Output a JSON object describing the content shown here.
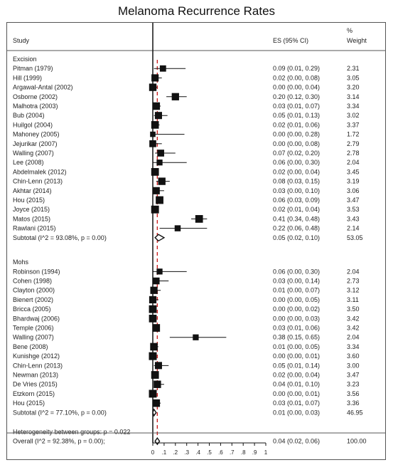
{
  "chart_data": {
    "type": "forest",
    "title": "Melanoma Recurrence Rates",
    "headers": {
      "study": "Study",
      "es": "ES (95% CI)",
      "weight_top": "%",
      "weight": "Weight"
    },
    "xlim": [
      0,
      1
    ],
    "xticks": [
      "0",
      ".1",
      ".2",
      ".3",
      ".4",
      ".5",
      ".6",
      ".7",
      ".8",
      ".9",
      "1"
    ],
    "reference_line": 0.04,
    "groups": [
      {
        "name": "Excision",
        "studies": [
          {
            "label": "Pitman (1979)",
            "es": 0.09,
            "lo": 0.01,
            "hi": 0.29,
            "ci": "0.09 (0.01, 0.29)",
            "weight": "2.31"
          },
          {
            "label": "Hill (1999)",
            "es": 0.02,
            "lo": 0.0,
            "hi": 0.08,
            "ci": "0.02 (0.00, 0.08)",
            "weight": "3.05"
          },
          {
            "label": "Argawal-Antal (2002)",
            "es": 0.0,
            "lo": 0.0,
            "hi": 0.04,
            "ci": "0.00 (0.00, 0.04)",
            "weight": "3.20"
          },
          {
            "label": "Osborne (2002)",
            "es": 0.2,
            "lo": 0.12,
            "hi": 0.3,
            "ci": "0.20 (0.12, 0.30)",
            "weight": "3.14"
          },
          {
            "label": "Malhotra (2003)",
            "es": 0.03,
            "lo": 0.01,
            "hi": 0.07,
            "ci": "0.03 (0.01, 0.07)",
            "weight": "3.34"
          },
          {
            "label": "Bub (2004)",
            "es": 0.05,
            "lo": 0.01,
            "hi": 0.13,
            "ci": "0.05 (0.01, 0.13)",
            "weight": "3.02"
          },
          {
            "label": "Huilgol (2004)",
            "es": 0.02,
            "lo": 0.01,
            "hi": 0.06,
            "ci": "0.02 (0.01, 0.06)",
            "weight": "3.37"
          },
          {
            "label": "Mahoney (2005)",
            "es": 0.0,
            "lo": 0.0,
            "hi": 0.28,
            "ci": "0.00 (0.00, 0.28)",
            "weight": "1.72"
          },
          {
            "label": "Jejurikar (2007)",
            "es": 0.0,
            "lo": 0.0,
            "hi": 0.08,
            "ci": "0.00 (0.00, 0.08)",
            "weight": "2.79"
          },
          {
            "label": "Walling (2007)",
            "es": 0.07,
            "lo": 0.02,
            "hi": 0.2,
            "ci": "0.07 (0.02, 0.20)",
            "weight": "2.78"
          },
          {
            "label": "Lee (2008)",
            "es": 0.06,
            "lo": 0.0,
            "hi": 0.3,
            "ci": "0.06 (0.00, 0.30)",
            "weight": "2.04"
          },
          {
            "label": "Abdelmalek (2012)",
            "es": 0.02,
            "lo": 0.0,
            "hi": 0.04,
            "ci": "0.02 (0.00, 0.04)",
            "weight": "3.45"
          },
          {
            "label": "Chin-Lenn (2013)",
            "es": 0.08,
            "lo": 0.03,
            "hi": 0.15,
            "ci": "0.08 (0.03, 0.15)",
            "weight": "3.19"
          },
          {
            "label": "Akhtar (2014)",
            "es": 0.03,
            "lo": 0.0,
            "hi": 0.1,
            "ci": "0.03 (0.00, 0.10)",
            "weight": "3.06"
          },
          {
            "label": "Hou (2015)",
            "es": 0.06,
            "lo": 0.03,
            "hi": 0.09,
            "ci": "0.06 (0.03, 0.09)",
            "weight": "3.47"
          },
          {
            "label": "Joyce (2015)",
            "es": 0.02,
            "lo": 0.01,
            "hi": 0.04,
            "ci": "0.02 (0.01, 0.04)",
            "weight": "3.53"
          },
          {
            "label": "Matos (2015)",
            "es": 0.41,
            "lo": 0.34,
            "hi": 0.48,
            "ci": "0.41 (0.34, 0.48)",
            "weight": "3.43"
          },
          {
            "label": "Rawlani (2015)",
            "es": 0.22,
            "lo": 0.06,
            "hi": 0.48,
            "ci": "0.22 (0.06, 0.48)",
            "weight": "2.14"
          }
        ],
        "subtotal": {
          "label": "Subtotal  (I^2 = 93.08%, p = 0.00)",
          "es": 0.05,
          "lo": 0.02,
          "hi": 0.1,
          "ci": "0.05 (0.02, 0.10)",
          "weight": "53.05"
        }
      },
      {
        "name": "Mohs",
        "studies": [
          {
            "label": "Robinson (1994)",
            "es": 0.06,
            "lo": 0.0,
            "hi": 0.3,
            "ci": "0.06 (0.00, 0.30)",
            "weight": "2.04"
          },
          {
            "label": "Cohen (1998)",
            "es": 0.03,
            "lo": 0.0,
            "hi": 0.14,
            "ci": "0.03 (0.00, 0.14)",
            "weight": "2.73"
          },
          {
            "label": "Clayton (2000)",
            "es": 0.01,
            "lo": 0.0,
            "hi": 0.07,
            "ci": "0.01 (0.00, 0.07)",
            "weight": "3.12"
          },
          {
            "label": "Bienert (2002)",
            "es": 0.0,
            "lo": 0.0,
            "hi": 0.05,
            "ci": "0.00 (0.00, 0.05)",
            "weight": "3.11"
          },
          {
            "label": "Bricca (2005)",
            "es": 0.0,
            "lo": 0.0,
            "hi": 0.02,
            "ci": "0.00 (0.00, 0.02)",
            "weight": "3.50"
          },
          {
            "label": "Bhardwaj (2006)",
            "es": 0.0,
            "lo": 0.0,
            "hi": 0.03,
            "ci": "0.00 (0.00, 0.03)",
            "weight": "3.42"
          },
          {
            "label": "Temple (2006)",
            "es": 0.03,
            "lo": 0.01,
            "hi": 0.06,
            "ci": "0.03 (0.01, 0.06)",
            "weight": "3.42"
          },
          {
            "label": "Walling (2007)",
            "es": 0.38,
            "lo": 0.15,
            "hi": 0.65,
            "ci": "0.38 (0.15, 0.65)",
            "weight": "2.04"
          },
          {
            "label": "Bene (2008)",
            "es": 0.01,
            "lo": 0.0,
            "hi": 0.05,
            "ci": "0.01 (0.00, 0.05)",
            "weight": "3.34"
          },
          {
            "label": "Kunishge (2012)",
            "es": 0.0,
            "lo": 0.0,
            "hi": 0.01,
            "ci": "0.00 (0.00, 0.01)",
            "weight": "3.60"
          },
          {
            "label": "Chin-Lenn (2013)",
            "es": 0.05,
            "lo": 0.01,
            "hi": 0.14,
            "ci": "0.05 (0.01, 0.14)",
            "weight": "3.00"
          },
          {
            "label": "Newman (2013)",
            "es": 0.02,
            "lo": 0.0,
            "hi": 0.04,
            "ci": "0.02 (0.00, 0.04)",
            "weight": "3.47"
          },
          {
            "label": "De Vries (2015)",
            "es": 0.04,
            "lo": 0.01,
            "hi": 0.1,
            "ci": "0.04 (0.01, 0.10)",
            "weight": "3.23"
          },
          {
            "label": "Etzkorn (2015)",
            "es": 0.0,
            "lo": 0.0,
            "hi": 0.01,
            "ci": "0.00 (0.00, 0.01)",
            "weight": "3.56"
          },
          {
            "label": "Hou (2015)",
            "es": 0.03,
            "lo": 0.01,
            "hi": 0.07,
            "ci": "0.03 (0.01, 0.07)",
            "weight": "3.36"
          }
        ],
        "subtotal": {
          "label": "Subtotal  (I^2 = 77.10%, p = 0.00)",
          "es": 0.01,
          "lo": 0.0,
          "hi": 0.03,
          "ci": "0.01 (0.00, 0.03)",
          "weight": "46.95"
        }
      }
    ],
    "heterogeneity": "Heterogeneity between groups: p = 0.022",
    "overall": {
      "label": "Overall  (I^2 = 92.38%, p = 0.00);",
      "es": 0.04,
      "lo": 0.02,
      "hi": 0.06,
      "ci": "0.04 (0.02, 0.06)",
      "weight": "100.00"
    },
    "colors": {
      "reference_line": "#cc2222",
      "markers": "#111111",
      "axis": "#111111"
    }
  }
}
